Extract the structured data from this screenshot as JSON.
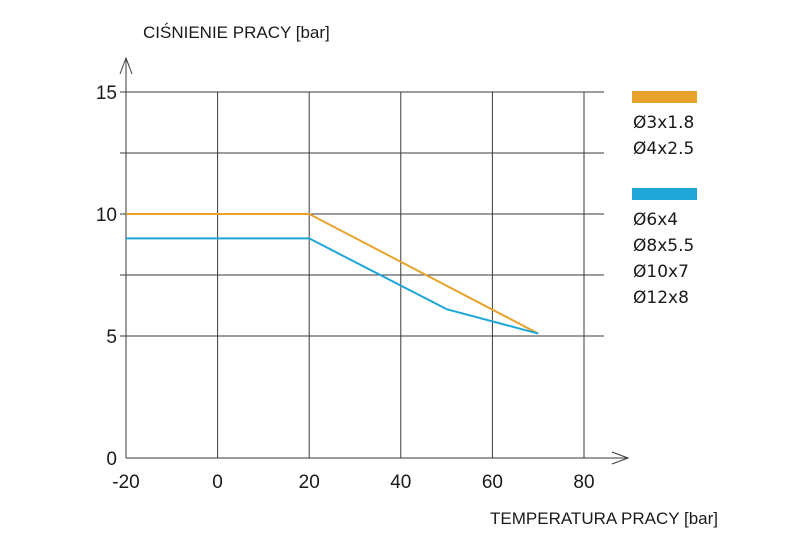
{
  "chart_data": {
    "type": "line",
    "ylabel": "CIŚNIENIE PRACY [bar]",
    "xlabel": "TEMPERATURA PRACY [bar]",
    "xlim": [
      -20,
      80
    ],
    "ylim": [
      0,
      15
    ],
    "x_ticks": [
      "-20",
      "0",
      "20",
      "40",
      "60",
      "80"
    ],
    "x_tick_values": [
      -20,
      0,
      20,
      40,
      60,
      80
    ],
    "y_ticks": [
      "0",
      "5",
      "10",
      "15"
    ],
    "y_tick_values": [
      0,
      5,
      10,
      15
    ],
    "y_grid_values": [
      0,
      5,
      7.5,
      10,
      12.5,
      15
    ],
    "grid": true,
    "legend_position": "right",
    "series": [
      {
        "color": "#E8A32E",
        "sizes": [
          "Ø3x1.8",
          "Ø4x2.5"
        ],
        "points": [
          [
            -20,
            10
          ],
          [
            20,
            10
          ],
          [
            70,
            5.1
          ]
        ]
      },
      {
        "color": "#1FA6D8",
        "sizes": [
          "Ø6x4",
          "Ø8x5.5",
          "Ø10x7",
          "Ø12x8"
        ],
        "points": [
          [
            -20,
            9
          ],
          [
            20,
            9
          ],
          [
            50,
            6.1
          ],
          [
            70,
            5.1
          ]
        ]
      }
    ]
  }
}
